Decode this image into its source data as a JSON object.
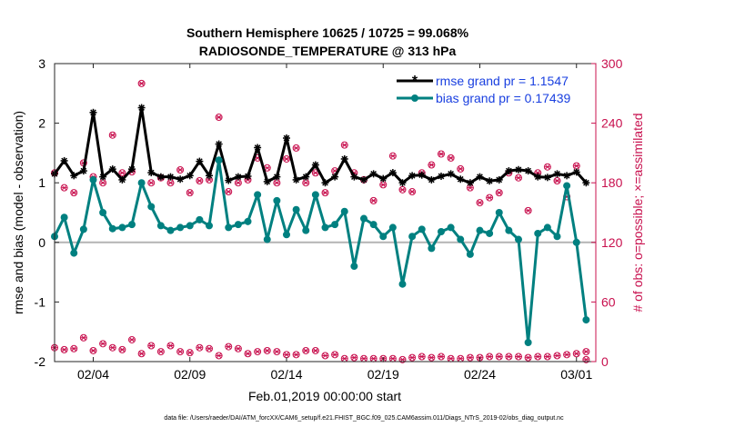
{
  "colors": {
    "rmse": "#000000",
    "bias": "#008080",
    "obs": "#c8104e",
    "zero_line": "#b4b4b4",
    "legend_text": "#1a40e0"
  },
  "chart_data": {
    "type": "line",
    "title": "Southern Hemisphere 10625 / 10725 = 99.068%",
    "subtitle": "RADIOSONDE_TEMPERATURE @ 313 hPa",
    "xlabel": "Feb.01,2019 00:00:00 start",
    "ylabel": "rmse and bias (model - observation)",
    "ylabel_right": "# of obs: o=possible; ×=assimilated",
    "xlim": [
      1,
      57
    ],
    "ylim": [
      -2,
      3
    ],
    "ylim_right": [
      0,
      300
    ],
    "xtick_positions": [
      5,
      15,
      25,
      35,
      45,
      55
    ],
    "xtick_labels": [
      "02/04",
      "02/09",
      "02/14",
      "02/19",
      "02/24",
      "03/01"
    ],
    "yticks": [
      -2,
      -1,
      0,
      1,
      2,
      3
    ],
    "yticks_right": [
      0,
      60,
      120,
      180,
      240,
      300
    ],
    "series": [
      {
        "name": "rmse grand pr = 1.1547",
        "marker": "asterisk",
        "x": [
          1,
          2,
          3,
          4,
          5,
          6,
          7,
          8,
          9,
          10,
          11,
          12,
          13,
          14,
          15,
          16,
          17,
          18,
          19,
          20,
          21,
          22,
          23,
          24,
          25,
          26,
          27,
          28,
          29,
          30,
          31,
          32,
          33,
          34,
          35,
          36,
          37,
          38,
          39,
          40,
          41,
          42,
          43,
          44,
          45,
          46,
          47,
          48,
          49,
          50,
          51,
          52,
          53,
          54,
          55,
          56
        ],
        "values": [
          1.15,
          1.37,
          1.12,
          1.2,
          2.18,
          1.1,
          1.23,
          1.05,
          1.23,
          2.26,
          1.17,
          1.1,
          1.1,
          1.06,
          1.12,
          1.36,
          1.12,
          1.65,
          1.04,
          1.1,
          1.11,
          1.59,
          1.02,
          1.1,
          1.75,
          1.05,
          1.1,
          1.3,
          1.0,
          1.1,
          1.4,
          1.1,
          1.05,
          1.15,
          1.07,
          1.17,
          1.0,
          1.12,
          1.13,
          1.05,
          1.11,
          1.15,
          1.06,
          1.0,
          1.1,
          1.03,
          1.05,
          1.2,
          1.22,
          1.2,
          1.1,
          1.09,
          1.15,
          1.12,
          1.18,
          1.0
        ],
        "colorKey": "rmse"
      },
      {
        "name": "bias grand pr = 0.17439",
        "marker": "circle",
        "x": [
          1,
          2,
          3,
          4,
          5,
          6,
          7,
          8,
          9,
          10,
          11,
          12,
          13,
          14,
          15,
          16,
          17,
          18,
          19,
          20,
          21,
          22,
          23,
          24,
          25,
          26,
          27,
          28,
          29,
          30,
          31,
          32,
          33,
          34,
          35,
          36,
          37,
          38,
          39,
          40,
          41,
          42,
          43,
          44,
          45,
          46,
          47,
          48,
          49,
          50,
          51,
          52,
          53,
          54,
          55,
          56
        ],
        "values": [
          0.1,
          0.42,
          -0.18,
          0.22,
          1.05,
          0.5,
          0.23,
          0.25,
          0.3,
          1.0,
          0.6,
          0.28,
          0.2,
          0.25,
          0.28,
          0.38,
          0.28,
          1.38,
          0.25,
          0.3,
          0.35,
          0.8,
          0.05,
          0.7,
          0.13,
          0.55,
          0.2,
          0.8,
          0.25,
          0.3,
          0.52,
          -0.4,
          0.4,
          0.3,
          0.1,
          0.25,
          -0.7,
          0.1,
          0.22,
          -0.1,
          0.18,
          0.25,
          0.05,
          -0.2,
          0.2,
          0.15,
          0.5,
          0.2,
          0.05,
          -1.68,
          0.15,
          0.25,
          0.1,
          0.95,
          0.0,
          -1.3
        ],
        "colorKey": "bias"
      }
    ],
    "obs_possible_x": [
      1,
      2,
      3,
      4,
      5,
      6,
      7,
      8,
      9,
      10,
      11,
      12,
      13,
      14,
      15,
      16,
      17,
      18,
      19,
      20,
      21,
      22,
      23,
      24,
      25,
      26,
      27,
      28,
      29,
      30,
      31,
      32,
      33,
      34,
      35,
      36,
      37,
      38,
      39,
      40,
      41,
      42,
      43,
      44,
      45,
      46,
      47,
      48,
      49,
      50,
      51,
      52,
      53,
      54,
      55,
      56
    ],
    "obs_possible": [
      190,
      175,
      170,
      200,
      186,
      180,
      228,
      190,
      191,
      280,
      180,
      185,
      180,
      193,
      170,
      182,
      183,
      246,
      171,
      180,
      183,
      205,
      195,
      180,
      204,
      215,
      180,
      190,
      170,
      192,
      218,
      190,
      183,
      162,
      178,
      207,
      173,
      171,
      190,
      198,
      209,
      205,
      194,
      175,
      160,
      165,
      170,
      190,
      185,
      152,
      190,
      196,
      182,
      166,
      197,
      10
    ],
    "obs_assimilated_x": [
      1,
      2,
      3,
      4,
      5,
      6,
      7,
      8,
      9,
      10,
      11,
      12,
      13,
      14,
      15,
      16,
      17,
      18,
      19,
      20,
      21,
      22,
      23,
      24,
      25,
      26,
      27,
      28,
      29,
      30,
      31,
      32,
      33,
      34,
      35,
      36,
      37,
      38,
      39,
      40,
      41,
      42,
      43,
      44,
      45,
      46,
      47,
      48,
      49,
      50,
      51,
      52,
      53,
      54,
      55,
      56
    ],
    "obs_assimilated": [
      190,
      175,
      170,
      200,
      186,
      180,
      228,
      190,
      191,
      280,
      180,
      185,
      180,
      193,
      170,
      182,
      183,
      246,
      171,
      180,
      183,
      205,
      195,
      180,
      204,
      215,
      180,
      190,
      170,
      192,
      218,
      190,
      183,
      162,
      178,
      207,
      173,
      171,
      190,
      198,
      209,
      205,
      194,
      175,
      160,
      165,
      170,
      190,
      185,
      152,
      190,
      196,
      182,
      166,
      197,
      10
    ],
    "obs_bottom_x": [
      1,
      2,
      3,
      4,
      5,
      6,
      7,
      8,
      9,
      10,
      11,
      12,
      13,
      14,
      15,
      16,
      17,
      18,
      19,
      20,
      21,
      22,
      23,
      24,
      25,
      26,
      27,
      28,
      29,
      30,
      31,
      32,
      33,
      34,
      35,
      36,
      37,
      38,
      39,
      40,
      41,
      42,
      43,
      44,
      45,
      46,
      47,
      48,
      49,
      50,
      51,
      52,
      53,
      54,
      55,
      56
    ],
    "obs_bottom": [
      14,
      12,
      13,
      24,
      11,
      18,
      14,
      12,
      22,
      8,
      16,
      10,
      16,
      10,
      9,
      14,
      13,
      6,
      15,
      13,
      8,
      10,
      11,
      10,
      7,
      7,
      11,
      11,
      6,
      7,
      3,
      4,
      3,
      3,
      3,
      3,
      2,
      4,
      5,
      4,
      5,
      3,
      3,
      4,
      4,
      5,
      5,
      5,
      5,
      4,
      5,
      5,
      6,
      7,
      8,
      2
    ],
    "legend_position": "top-right"
  },
  "footer": {
    "data_file": "data file: /Users/raeder/DAI/ATM_forcXX/CAM6_setup/f.e21.FHIST_BGC.f09_025.CAM6assim.011/Diags_NTrS_2019-02/obs_diag_output.nc"
  }
}
